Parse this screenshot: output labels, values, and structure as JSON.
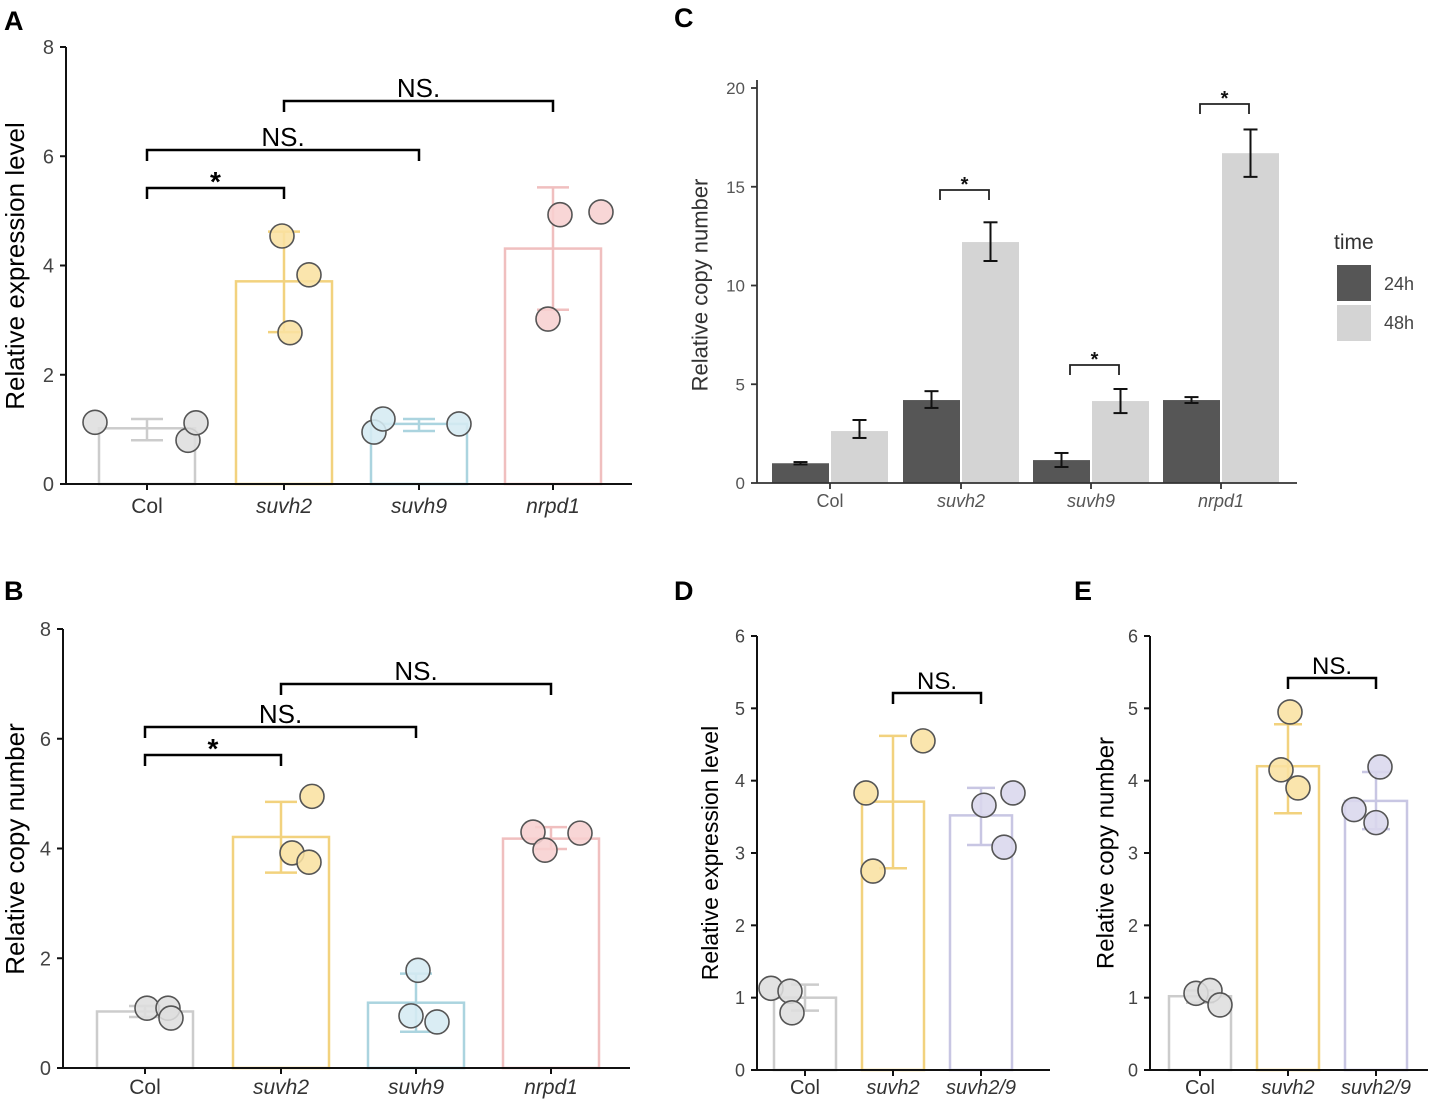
{
  "chart_data": [
    {
      "panel": "A",
      "type": "bar",
      "ylabel": "Relative expression level",
      "ylim": [
        0,
        8
      ],
      "yticks": [
        0,
        2,
        4,
        6,
        8
      ],
      "categories": [
        "Col",
        "suvh2",
        "suvh9",
        "nrpd1"
      ],
      "values": [
        1.02,
        3.71,
        1.1,
        4.31
      ],
      "error_range": [
        [
          0.8,
          1.19
        ],
        [
          2.78,
          4.62
        ],
        [
          0.97,
          1.19
        ],
        [
          3.19,
          5.43
        ]
      ],
      "points": [
        [
          1.13,
          0.8,
          1.12
        ],
        [
          4.54,
          3.83,
          2.77
        ],
        [
          0.95,
          1.19,
          1.1
        ],
        [
          4.93,
          4.98,
          3.02
        ]
      ],
      "bar_colors": [
        "#cccccc",
        "#f2d27e",
        "#abd4df",
        "#f0bfbf"
      ],
      "point_colors": [
        "#dedede",
        "#f9e1a2",
        "#d5ebf2",
        "#f7d0d0"
      ],
      "significance": [
        {
          "from": 0,
          "to": 1,
          "label": "*"
        },
        {
          "from": 0,
          "to": 2,
          "label": "NS."
        },
        {
          "from": 1,
          "to": 3,
          "label": "NS."
        }
      ]
    },
    {
      "panel": "B",
      "type": "bar",
      "ylabel": "Relative copy number",
      "ylim": [
        0,
        8
      ],
      "yticks": [
        0,
        2,
        4,
        6,
        8
      ],
      "categories": [
        "Col",
        "suvh2",
        "suvh9",
        "nrpd1"
      ],
      "values": [
        1.03,
        4.21,
        1.19,
        4.18
      ],
      "error_range": [
        [
          0.93,
          1.13
        ],
        [
          3.56,
          4.85
        ],
        [
          0.66,
          1.72
        ],
        [
          3.99,
          4.39
        ]
      ],
      "points": [
        [
          1.09,
          1.09,
          0.91
        ],
        [
          4.95,
          3.92,
          3.75
        ],
        [
          1.78,
          0.95,
          0.84
        ],
        [
          4.3,
          3.97,
          4.28
        ]
      ],
      "bar_colors": [
        "#cccccc",
        "#f2d27e",
        "#abd4df",
        "#f0bfbf"
      ],
      "point_colors": [
        "#dedede",
        "#f9e1a2",
        "#d5ebf2",
        "#f7d0d0"
      ],
      "significance": [
        {
          "from": 0,
          "to": 1,
          "label": "*"
        },
        {
          "from": 0,
          "to": 2,
          "label": "NS."
        },
        {
          "from": 1,
          "to": 3,
          "label": "NS."
        }
      ]
    },
    {
      "panel": "C",
      "type": "bar",
      "ylabel": "Relative copy number",
      "ylim": [
        0,
        20
      ],
      "yticks": [
        0,
        5,
        10,
        15,
        20
      ],
      "categories": [
        "Col",
        "suvh2",
        "suvh9",
        "nrpd1"
      ],
      "legend": {
        "title": "time"
      },
      "series": [
        {
          "name": "24h",
          "color": "#565656",
          "values": [
            1.0,
            4.2,
            1.16,
            4.2
          ],
          "error_range": [
            [
              0.94,
              1.06
            ],
            [
              3.8,
              4.65
            ],
            [
              0.81,
              1.52
            ],
            [
              4.05,
              4.35
            ]
          ]
        },
        {
          "name": "48h",
          "color": "#d4d4d4",
          "values": [
            2.63,
            12.2,
            4.15,
            16.7
          ],
          "error_range": [
            [
              2.28,
              3.19
            ],
            [
              11.24,
              13.2
            ],
            [
              3.54,
              4.76
            ],
            [
              15.5,
              17.9
            ]
          ]
        }
      ],
      "significance": [
        {
          "category": 1,
          "label": "*"
        },
        {
          "category": 2,
          "label": "*"
        },
        {
          "category": 3,
          "label": "*"
        }
      ]
    },
    {
      "panel": "D",
      "type": "bar",
      "ylabel": "Relative expression level",
      "ylim": [
        0,
        6
      ],
      "yticks": [
        0,
        1,
        2,
        3,
        4,
        5,
        6
      ],
      "categories": [
        "Col",
        "suvh2",
        "suvh2/9"
      ],
      "values": [
        1.0,
        3.71,
        3.52
      ],
      "error_range": [
        [
          0.82,
          1.18
        ],
        [
          2.79,
          4.62
        ],
        [
          3.11,
          3.9
        ]
      ],
      "points": [
        [
          1.13,
          1.09,
          0.79
        ],
        [
          3.83,
          4.55,
          2.75
        ],
        [
          3.66,
          3.83,
          3.08
        ]
      ],
      "bar_colors": [
        "#cccccc",
        "#f2d27e",
        "#c8c6e3"
      ],
      "point_colors": [
        "#dedede",
        "#f9e1a2",
        "#d9d7ed"
      ],
      "significance": [
        {
          "from": 1,
          "to": 2,
          "label": "NS."
        }
      ]
    },
    {
      "panel": "E",
      "type": "bar",
      "ylabel": "Relative copy number",
      "ylim": [
        0,
        6
      ],
      "yticks": [
        0,
        1,
        2,
        3,
        4,
        5,
        6
      ],
      "categories": [
        "Col",
        "suvh2",
        "suvh2/9"
      ],
      "values": [
        1.02,
        4.2,
        3.72
      ],
      "error_range": [
        [
          0.93,
          1.1
        ],
        [
          3.55,
          4.78
        ],
        [
          3.33,
          4.12
        ]
      ],
      "points": [
        [
          1.06,
          1.1,
          0.9
        ],
        [
          4.95,
          4.15,
          3.9
        ],
        [
          3.6,
          4.19,
          3.42
        ]
      ],
      "bar_colors": [
        "#cccccc",
        "#f2d27e",
        "#c8c6e3"
      ],
      "point_colors": [
        "#dedede",
        "#f9e1a2",
        "#d9d7ed"
      ],
      "significance": [
        {
          "from": 1,
          "to": 2,
          "label": "NS."
        }
      ]
    }
  ]
}
